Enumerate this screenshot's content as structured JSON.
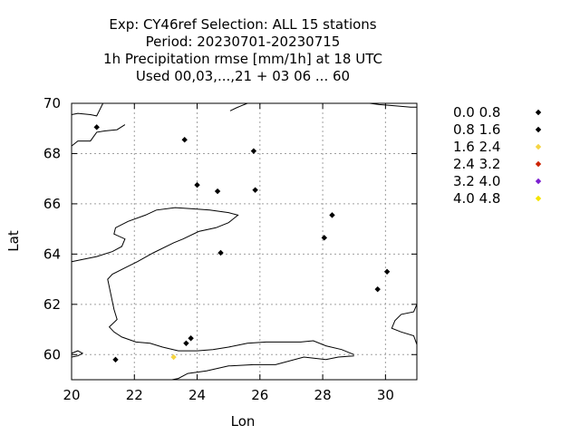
{
  "chart_data": {
    "type": "scatter",
    "title_lines": [
      "Exp: CY46ref   Selection: ALL     15 stations",
      "Period: 20230701-20230715",
      "1h Precipitation rmse [mm/1h] at  18 UTC",
      "Used  00,03,...,21  + 03 06 ... 60"
    ],
    "xlabel": "Lon",
    "ylabel": "Lat",
    "xlim": [
      20,
      31
    ],
    "ylim": [
      59,
      70
    ],
    "xticks": [
      20,
      22,
      24,
      26,
      28,
      30
    ],
    "yticks": [
      60,
      62,
      64,
      66,
      68,
      70
    ],
    "grid": true,
    "legend_position": "right",
    "legend": [
      {
        "label": "0.0 0.8",
        "color": "#000000"
      },
      {
        "label": "0.8 1.6",
        "color": "#000000"
      },
      {
        "label": "1.6 2.4",
        "color": "#f5d442"
      },
      {
        "label": "2.4 3.2",
        "color": "#cc2200"
      },
      {
        "label": "3.2 4.0",
        "color": "#7b1fd0"
      },
      {
        "label": "4.0 4.8",
        "color": "#f5e400"
      }
    ],
    "points": [
      {
        "lon": 20.8,
        "lat": 69.05,
        "color": "#000000"
      },
      {
        "lon": 23.6,
        "lat": 68.55,
        "color": "#000000"
      },
      {
        "lon": 25.8,
        "lat": 68.1,
        "color": "#000000"
      },
      {
        "lon": 24.0,
        "lat": 66.75,
        "color": "#000000"
      },
      {
        "lon": 24.65,
        "lat": 66.5,
        "color": "#000000"
      },
      {
        "lon": 25.85,
        "lat": 66.55,
        "color": "#000000"
      },
      {
        "lon": 28.3,
        "lat": 65.55,
        "color": "#000000"
      },
      {
        "lon": 28.05,
        "lat": 64.65,
        "color": "#000000"
      },
      {
        "lon": 24.75,
        "lat": 64.05,
        "color": "#000000"
      },
      {
        "lon": 30.05,
        "lat": 63.3,
        "color": "#000000"
      },
      {
        "lon": 29.75,
        "lat": 62.6,
        "color": "#000000"
      },
      {
        "lon": 23.8,
        "lat": 60.65,
        "color": "#000000"
      },
      {
        "lon": 23.65,
        "lat": 60.45,
        "color": "#000000"
      },
      {
        "lon": 21.4,
        "lat": 59.8,
        "color": "#000000"
      },
      {
        "lon": 23.25,
        "lat": 59.9,
        "color": "#f5d442"
      }
    ],
    "coastlines": [
      [
        [
          20,
          68.3
        ],
        [
          20.2,
          68.5
        ],
        [
          20.6,
          68.5
        ],
        [
          20.8,
          68.85
        ],
        [
          21.05,
          68.9
        ],
        [
          21.45,
          68.95
        ],
        [
          21.7,
          69.15
        ]
      ],
      [
        [
          20,
          69.55
        ],
        [
          20.2,
          69.6
        ],
        [
          20.6,
          69.55
        ],
        [
          20.8,
          69.5
        ],
        [
          20.9,
          69.75
        ],
        [
          21.0,
          70.0
        ]
      ],
      [
        [
          25.05,
          69.7
        ],
        [
          25.25,
          69.82
        ],
        [
          25.4,
          69.9
        ],
        [
          25.6,
          70.0
        ]
      ],
      [
        [
          29.5,
          70.0
        ],
        [
          29.8,
          69.95
        ],
        [
          30.3,
          69.9
        ],
        [
          30.8,
          69.85
        ],
        [
          31.0,
          69.85
        ]
      ],
      [
        [
          20,
          63.7
        ],
        [
          20.8,
          63.9
        ],
        [
          21.3,
          64.1
        ],
        [
          21.6,
          64.3
        ],
        [
          21.7,
          64.6
        ],
        [
          21.35,
          64.8
        ],
        [
          21.4,
          65.05
        ],
        [
          21.8,
          65.3
        ],
        [
          22.35,
          65.55
        ],
        [
          22.7,
          65.75
        ],
        [
          23.3,
          65.85
        ],
        [
          23.9,
          65.8
        ],
        [
          24.4,
          65.75
        ],
        [
          25.0,
          65.65
        ],
        [
          25.3,
          65.55
        ],
        [
          25.0,
          65.25
        ],
        [
          24.6,
          65.05
        ],
        [
          24.05,
          64.9
        ],
        [
          23.55,
          64.6
        ],
        [
          23.25,
          64.45
        ],
        [
          22.6,
          64.05
        ],
        [
          22.1,
          63.7
        ],
        [
          21.7,
          63.45
        ],
        [
          21.3,
          63.2
        ],
        [
          21.15,
          63.0
        ],
        [
          21.25,
          62.4
        ],
        [
          21.35,
          61.8
        ],
        [
          21.45,
          61.4
        ],
        [
          21.2,
          61.1
        ],
        [
          21.35,
          60.9
        ],
        [
          21.6,
          60.7
        ],
        [
          22.05,
          60.5
        ],
        [
          22.5,
          60.45
        ],
        [
          22.9,
          60.3
        ],
        [
          23.4,
          60.15
        ],
        [
          24.0,
          60.15
        ],
        [
          24.5,
          60.2
        ],
        [
          25.0,
          60.3
        ],
        [
          25.6,
          60.45
        ],
        [
          26.2,
          60.5
        ],
        [
          26.7,
          60.5
        ],
        [
          27.3,
          60.5
        ],
        [
          27.7,
          60.55
        ],
        [
          28.1,
          60.35
        ],
        [
          28.6,
          60.2
        ],
        [
          29.0,
          60.0
        ]
      ],
      [
        [
          29.0,
          59.95
        ],
        [
          28.5,
          59.9
        ],
        [
          28.1,
          59.8
        ],
        [
          27.4,
          59.9
        ],
        [
          26.5,
          59.6
        ],
        [
          25.8,
          59.6
        ],
        [
          25.0,
          59.55
        ],
        [
          24.3,
          59.35
        ],
        [
          23.7,
          59.25
        ],
        [
          23.4,
          59.05
        ],
        [
          23.2,
          59.0
        ]
      ],
      [
        [
          20,
          60.05
        ],
        [
          20.2,
          60.15
        ],
        [
          20.35,
          60.05
        ],
        [
          20.2,
          59.95
        ],
        [
          20,
          59.9
        ]
      ],
      [
        [
          31.0,
          62.0
        ],
        [
          30.9,
          61.7
        ],
        [
          30.5,
          61.6
        ],
        [
          30.3,
          61.35
        ],
        [
          30.2,
          61.05
        ],
        [
          30.5,
          60.9
        ],
        [
          30.9,
          60.75
        ],
        [
          31.0,
          60.4
        ]
      ]
    ]
  }
}
